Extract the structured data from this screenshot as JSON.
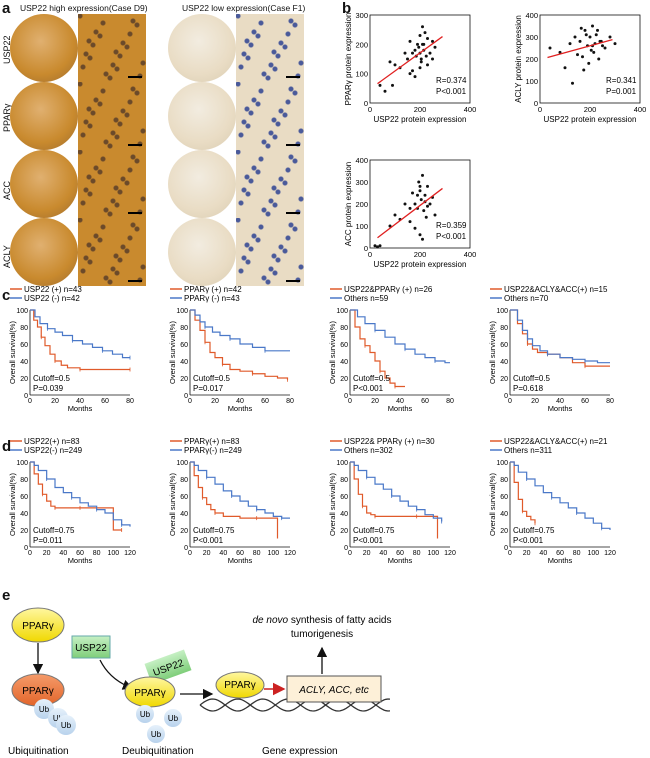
{
  "panel_labels": {
    "a": "a",
    "b": "b",
    "c": "c",
    "d": "d",
    "e": "e"
  },
  "panel_a": {
    "title_high": "USP22 high expression(Case D9)",
    "title_low": "USP22 low expression(Case F1)",
    "rows": [
      "USP22",
      "PPARγ",
      "ACC",
      "ACLY"
    ],
    "colors": {
      "high": "#c98a2e",
      "low": "#e9dcc4",
      "nuclei": "#4a5a9a"
    }
  },
  "panel_b": {
    "xlabel": "USP22 protein expression",
    "xticks": [
      "0",
      "200",
      "400"
    ],
    "plots": [
      {
        "ylabel": "PPARγ protein expression",
        "yticks": [
          "0",
          "100",
          "200",
          "300"
        ],
        "r": "R=0.374",
        "p": "P<0.001"
      },
      {
        "ylabel": "ACLY protein expression",
        "yticks": [
          "0",
          "100",
          "200",
          "300",
          "400"
        ],
        "r": "R=0.341",
        "p": "P=0.001"
      },
      {
        "ylabel": "ACC protein expression",
        "yticks": [
          "0",
          "100",
          "200",
          "300",
          "400"
        ],
        "r": "R=0.359",
        "p": "P<0.001"
      }
    ]
  },
  "panel_c": {
    "ylabel": "Overall survival(%)",
    "xlabel": "Months",
    "xticks": [
      "0",
      "20",
      "40",
      "60",
      "80"
    ],
    "yticks": [
      "0",
      "20",
      "40",
      "60",
      "80",
      "100"
    ],
    "plots": [
      {
        "s1": "USP22 (+) n=43",
        "s2": "USP22 (-) n=42",
        "cutoff": "Cutoff=0.5",
        "p": "P=0.039"
      },
      {
        "s1": "PPARγ (+) n=42",
        "s2": "PPARγ (-) n=43",
        "cutoff": "Cutoff=0.5",
        "p": "P=0.017"
      },
      {
        "s1": "USP22&PPARγ (+) n=26",
        "s2": "Others n=59",
        "cutoff": "Cutoff=0.5",
        "p": "P<0.001"
      },
      {
        "s1": "USP22&ACLY&ACC(+) n=15",
        "s2": "Others n=70",
        "cutoff": "Cutoff=0.5",
        "p": "P=0.618"
      }
    ]
  },
  "panel_d": {
    "ylabel": "Overall survival(%)",
    "xlabel": "Months",
    "xticks": [
      "0",
      "20",
      "40",
      "60",
      "80",
      "100",
      "120"
    ],
    "yticks": [
      "0",
      "20",
      "40",
      "60",
      "80",
      "100"
    ],
    "plots": [
      {
        "s1": "USP22(+) n=83",
        "s2": "USP22(-) n=249",
        "cutoff": "Cutoff=0.75",
        "p": "P=0.011"
      },
      {
        "s1": "PPARγ(+) n=83",
        "s2": "PPARγ(-) n=249",
        "cutoff": "Cutoff=0.75",
        "p": "P<0.001"
      },
      {
        "s1": "USP22& PPARγ (+) n=30",
        "s2": "Others n=302",
        "cutoff": "Cutoff=0.75",
        "p": "P<0.001"
      },
      {
        "s1": "USP22&ACLY&ACC(+) n=21",
        "s2": "Others n=311",
        "cutoff": "Cutoff=0.75",
        "p": "P<0.001"
      }
    ]
  },
  "panel_e": {
    "pparg": "PPARγ",
    "usp22": "USP22",
    "ub": "Ub",
    "genes": "ACLY, ACC, etc",
    "synthesis_italic": "de novo",
    "synthesis_rest": " synthesis of fatty acids",
    "tumor": "tumorigenesis",
    "step1": "Ubiquitination",
    "step2": "Deubiquitination",
    "step3": "Gene expression"
  },
  "chart_data": [
    {
      "type": "scatter",
      "panel": "b-1",
      "xlabel": "USP22 protein expression",
      "ylabel": "PPARγ protein expression",
      "xlim": [
        0,
        400
      ],
      "ylim": [
        0,
        300
      ],
      "x": [
        40,
        60,
        80,
        100,
        120,
        140,
        150,
        160,
        170,
        180,
        185,
        190,
        195,
        200,
        205,
        210,
        215,
        220,
        225,
        230,
        240,
        250,
        260,
        90,
        170,
        200,
        210,
        230,
        180,
        200,
        215,
        160,
        250,
        205
      ],
      "y": [
        60,
        40,
        140,
        130,
        120,
        170,
        150,
        210,
        170,
        180,
        160,
        200,
        190,
        230,
        150,
        200,
        180,
        240,
        160,
        220,
        170,
        210,
        190,
        60,
        110,
        120,
        260,
        130,
        90,
        170,
        200,
        100,
        150,
        140
      ]
    },
    {
      "type": "scatter",
      "panel": "b-2",
      "xlabel": "USP22 protein expression",
      "ylabel": "ACLY protein expression",
      "xlim": [
        0,
        400
      ],
      "ylim": [
        0,
        400
      ],
      "x": [
        40,
        80,
        100,
        120,
        140,
        150,
        160,
        170,
        180,
        190,
        200,
        205,
        210,
        220,
        230,
        240,
        250,
        260,
        280,
        300,
        130,
        175,
        195,
        215,
        225,
        235,
        245,
        185,
        165,
        210
      ],
      "y": [
        250,
        230,
        160,
        270,
        300,
        220,
        280,
        210,
        330,
        260,
        300,
        240,
        350,
        270,
        330,
        280,
        260,
        250,
        300,
        270,
        90,
        150,
        180,
        230,
        310,
        200,
        280,
        310,
        340,
        260
      ]
    },
    {
      "type": "scatter",
      "panel": "b-3",
      "xlabel": "USP22 protein expression",
      "ylabel": "ACC protein expression",
      "xlim": [
        0,
        400
      ],
      "ylim": [
        0,
        400
      ],
      "x": [
        20,
        30,
        40,
        80,
        100,
        120,
        140,
        160,
        170,
        180,
        190,
        195,
        200,
        205,
        210,
        215,
        220,
        225,
        230,
        240,
        250,
        260,
        180,
        200,
        210,
        160,
        230,
        190,
        220,
        200
      ],
      "y": [
        10,
        5,
        10,
        100,
        150,
        130,
        200,
        180,
        250,
        200,
        180,
        300,
        260,
        220,
        330,
        170,
        240,
        140,
        280,
        200,
        230,
        150,
        90,
        60,
        40,
        120,
        190,
        240,
        210,
        280
      ]
    },
    {
      "type": "line",
      "panel": "c-1",
      "x_label": "Months",
      "y_label": "Overall survival(%)",
      "xlim": [
        0,
        80
      ],
      "ylim": [
        0,
        100
      ],
      "series": [
        {
          "name": "USP22 (+) n=43",
          "x": [
            0,
            3,
            6,
            9,
            12,
            16,
            20,
            25,
            30,
            40,
            50,
            60,
            80
          ],
          "values": [
            100,
            88,
            80,
            68,
            58,
            48,
            40,
            35,
            32,
            30,
            30,
            30,
            30
          ]
        },
        {
          "name": "USP22 (-) n=42",
          "x": [
            0,
            4,
            8,
            14,
            20,
            26,
            34,
            42,
            50,
            58,
            66,
            74,
            80
          ],
          "values": [
            100,
            92,
            84,
            78,
            74,
            70,
            64,
            60,
            56,
            52,
            48,
            44,
            44
          ]
        }
      ]
    },
    {
      "type": "line",
      "panel": "c-2",
      "x_label": "Months",
      "y_label": "Overall survival(%)",
      "xlim": [
        0,
        80
      ],
      "ylim": [
        0,
        100
      ],
      "series": [
        {
          "name": "PPARγ (+) n=42",
          "x": [
            0,
            4,
            8,
            12,
            16,
            20,
            26,
            32,
            40,
            50,
            60,
            70,
            78
          ],
          "values": [
            100,
            88,
            76,
            62,
            50,
            44,
            36,
            30,
            28,
            25,
            22,
            20,
            18
          ]
        },
        {
          "name": "PPARγ (-) n=43",
          "x": [
            0,
            4,
            8,
            12,
            18,
            24,
            32,
            40,
            50,
            60,
            70,
            80
          ],
          "values": [
            100,
            94,
            86,
            80,
            74,
            70,
            66,
            60,
            56,
            52,
            52,
            52
          ]
        }
      ]
    },
    {
      "type": "line",
      "panel": "c-3",
      "x_label": "Months",
      "y_label": "Overall survival(%)",
      "xlim": [
        0,
        80
      ],
      "ylim": [
        0,
        100
      ],
      "series": [
        {
          "name": "USP22&PPARγ (+) n=26",
          "x": [
            0,
            4,
            8,
            12,
            16,
            20,
            24,
            28,
            32,
            36,
            40,
            44
          ],
          "values": [
            100,
            80,
            66,
            58,
            50,
            40,
            28,
            20,
            14,
            10,
            10,
            10
          ]
        },
        {
          "name": "Others n=59",
          "x": [
            0,
            6,
            12,
            20,
            28,
            36,
            44,
            52,
            60,
            68,
            76,
            80
          ],
          "values": [
            100,
            92,
            84,
            76,
            68,
            60,
            54,
            48,
            44,
            40,
            38,
            38
          ]
        }
      ]
    },
    {
      "type": "line",
      "panel": "c-4",
      "x_label": "Months",
      "y_label": "Overall survival(%)",
      "xlim": [
        0,
        80
      ],
      "ylim": [
        0,
        100
      ],
      "series": [
        {
          "name": "USP22&ACLY&ACC(+) n=15",
          "x": [
            0,
            6,
            10,
            14,
            18,
            22,
            30,
            40,
            50,
            60,
            70,
            80
          ],
          "values": [
            100,
            84,
            72,
            60,
            54,
            50,
            48,
            44,
            38,
            34,
            34,
            34
          ]
        },
        {
          "name": "Others n=70",
          "x": [
            0,
            6,
            10,
            14,
            18,
            24,
            30,
            40,
            50,
            60,
            70,
            80
          ],
          "values": [
            100,
            88,
            76,
            66,
            58,
            52,
            48,
            44,
            42,
            40,
            38,
            38
          ]
        }
      ]
    },
    {
      "type": "line",
      "panel": "d-1",
      "x_label": "Months",
      "y_label": "Overall survival(%)",
      "xlim": [
        0,
        120
      ],
      "ylim": [
        0,
        100
      ],
      "series": [
        {
          "name": "USP22(+) n=83",
          "x": [
            0,
            5,
            10,
            15,
            20,
            25,
            30,
            40,
            50,
            60,
            80,
            100,
            110
          ],
          "values": [
            100,
            86,
            74,
            62,
            54,
            48,
            46,
            46,
            46,
            46,
            46,
            20,
            20
          ]
        },
        {
          "name": "USP22(-) n=249",
          "x": [
            0,
            5,
            10,
            20,
            30,
            40,
            50,
            60,
            70,
            80,
            90,
            100,
            110,
            120
          ],
          "values": [
            100,
            96,
            90,
            80,
            70,
            64,
            58,
            52,
            48,
            44,
            40,
            32,
            26,
            24
          ]
        }
      ]
    },
    {
      "type": "line",
      "panel": "d-2",
      "x_label": "Months",
      "y_label": "Overall survival(%)",
      "xlim": [
        0,
        120
      ],
      "ylim": [
        0,
        100
      ],
      "series": [
        {
          "name": "PPARγ(+) n=83",
          "x": [
            0,
            5,
            10,
            15,
            20,
            25,
            30,
            40,
            60,
            80,
            100,
            105
          ],
          "values": [
            100,
            84,
            70,
            58,
            50,
            44,
            40,
            36,
            34,
            34,
            34,
            10
          ]
        },
        {
          "name": "PPARγ(-) n=249",
          "x": [
            0,
            5,
            10,
            20,
            30,
            40,
            50,
            60,
            70,
            80,
            90,
            100,
            110,
            120
          ],
          "values": [
            100,
            96,
            90,
            82,
            74,
            66,
            60,
            54,
            48,
            44,
            40,
            36,
            34,
            34
          ]
        }
      ]
    },
    {
      "type": "line",
      "panel": "d-3",
      "x_label": "Months",
      "y_label": "Overall survival(%)",
      "xlim": [
        0,
        120
      ],
      "ylim": [
        0,
        100
      ],
      "series": [
        {
          "name": "USP22& PPARγ (+) n=30",
          "x": [
            0,
            5,
            10,
            15,
            20,
            25,
            30,
            40,
            60,
            80,
            100,
            105
          ],
          "values": [
            100,
            80,
            62,
            48,
            40,
            38,
            36,
            36,
            36,
            36,
            36,
            10
          ]
        },
        {
          "name": "Others n=302",
          "x": [
            0,
            5,
            10,
            20,
            30,
            40,
            50,
            60,
            70,
            80,
            90,
            100,
            110
          ],
          "values": [
            100,
            96,
            90,
            82,
            74,
            68,
            60,
            54,
            48,
            44,
            38,
            34,
            30
          ]
        }
      ]
    },
    {
      "type": "line",
      "panel": "d-4",
      "x_label": "Months",
      "y_label": "Overall survival(%)",
      "xlim": [
        0,
        120
      ],
      "ylim": [
        0,
        100
      ],
      "series": [
        {
          "name": "USP22&ACLY&ACC(+) n=21",
          "x": [
            0,
            5,
            10,
            15,
            20,
            25,
            30
          ],
          "values": [
            100,
            76,
            56,
            42,
            36,
            32,
            28
          ]
        },
        {
          "name": "Others n=311",
          "x": [
            0,
            5,
            10,
            20,
            30,
            40,
            50,
            60,
            70,
            80,
            90,
            100,
            110,
            120
          ],
          "values": [
            100,
            96,
            88,
            80,
            72,
            64,
            58,
            52,
            46,
            40,
            34,
            28,
            22,
            20
          ]
        }
      ]
    }
  ]
}
